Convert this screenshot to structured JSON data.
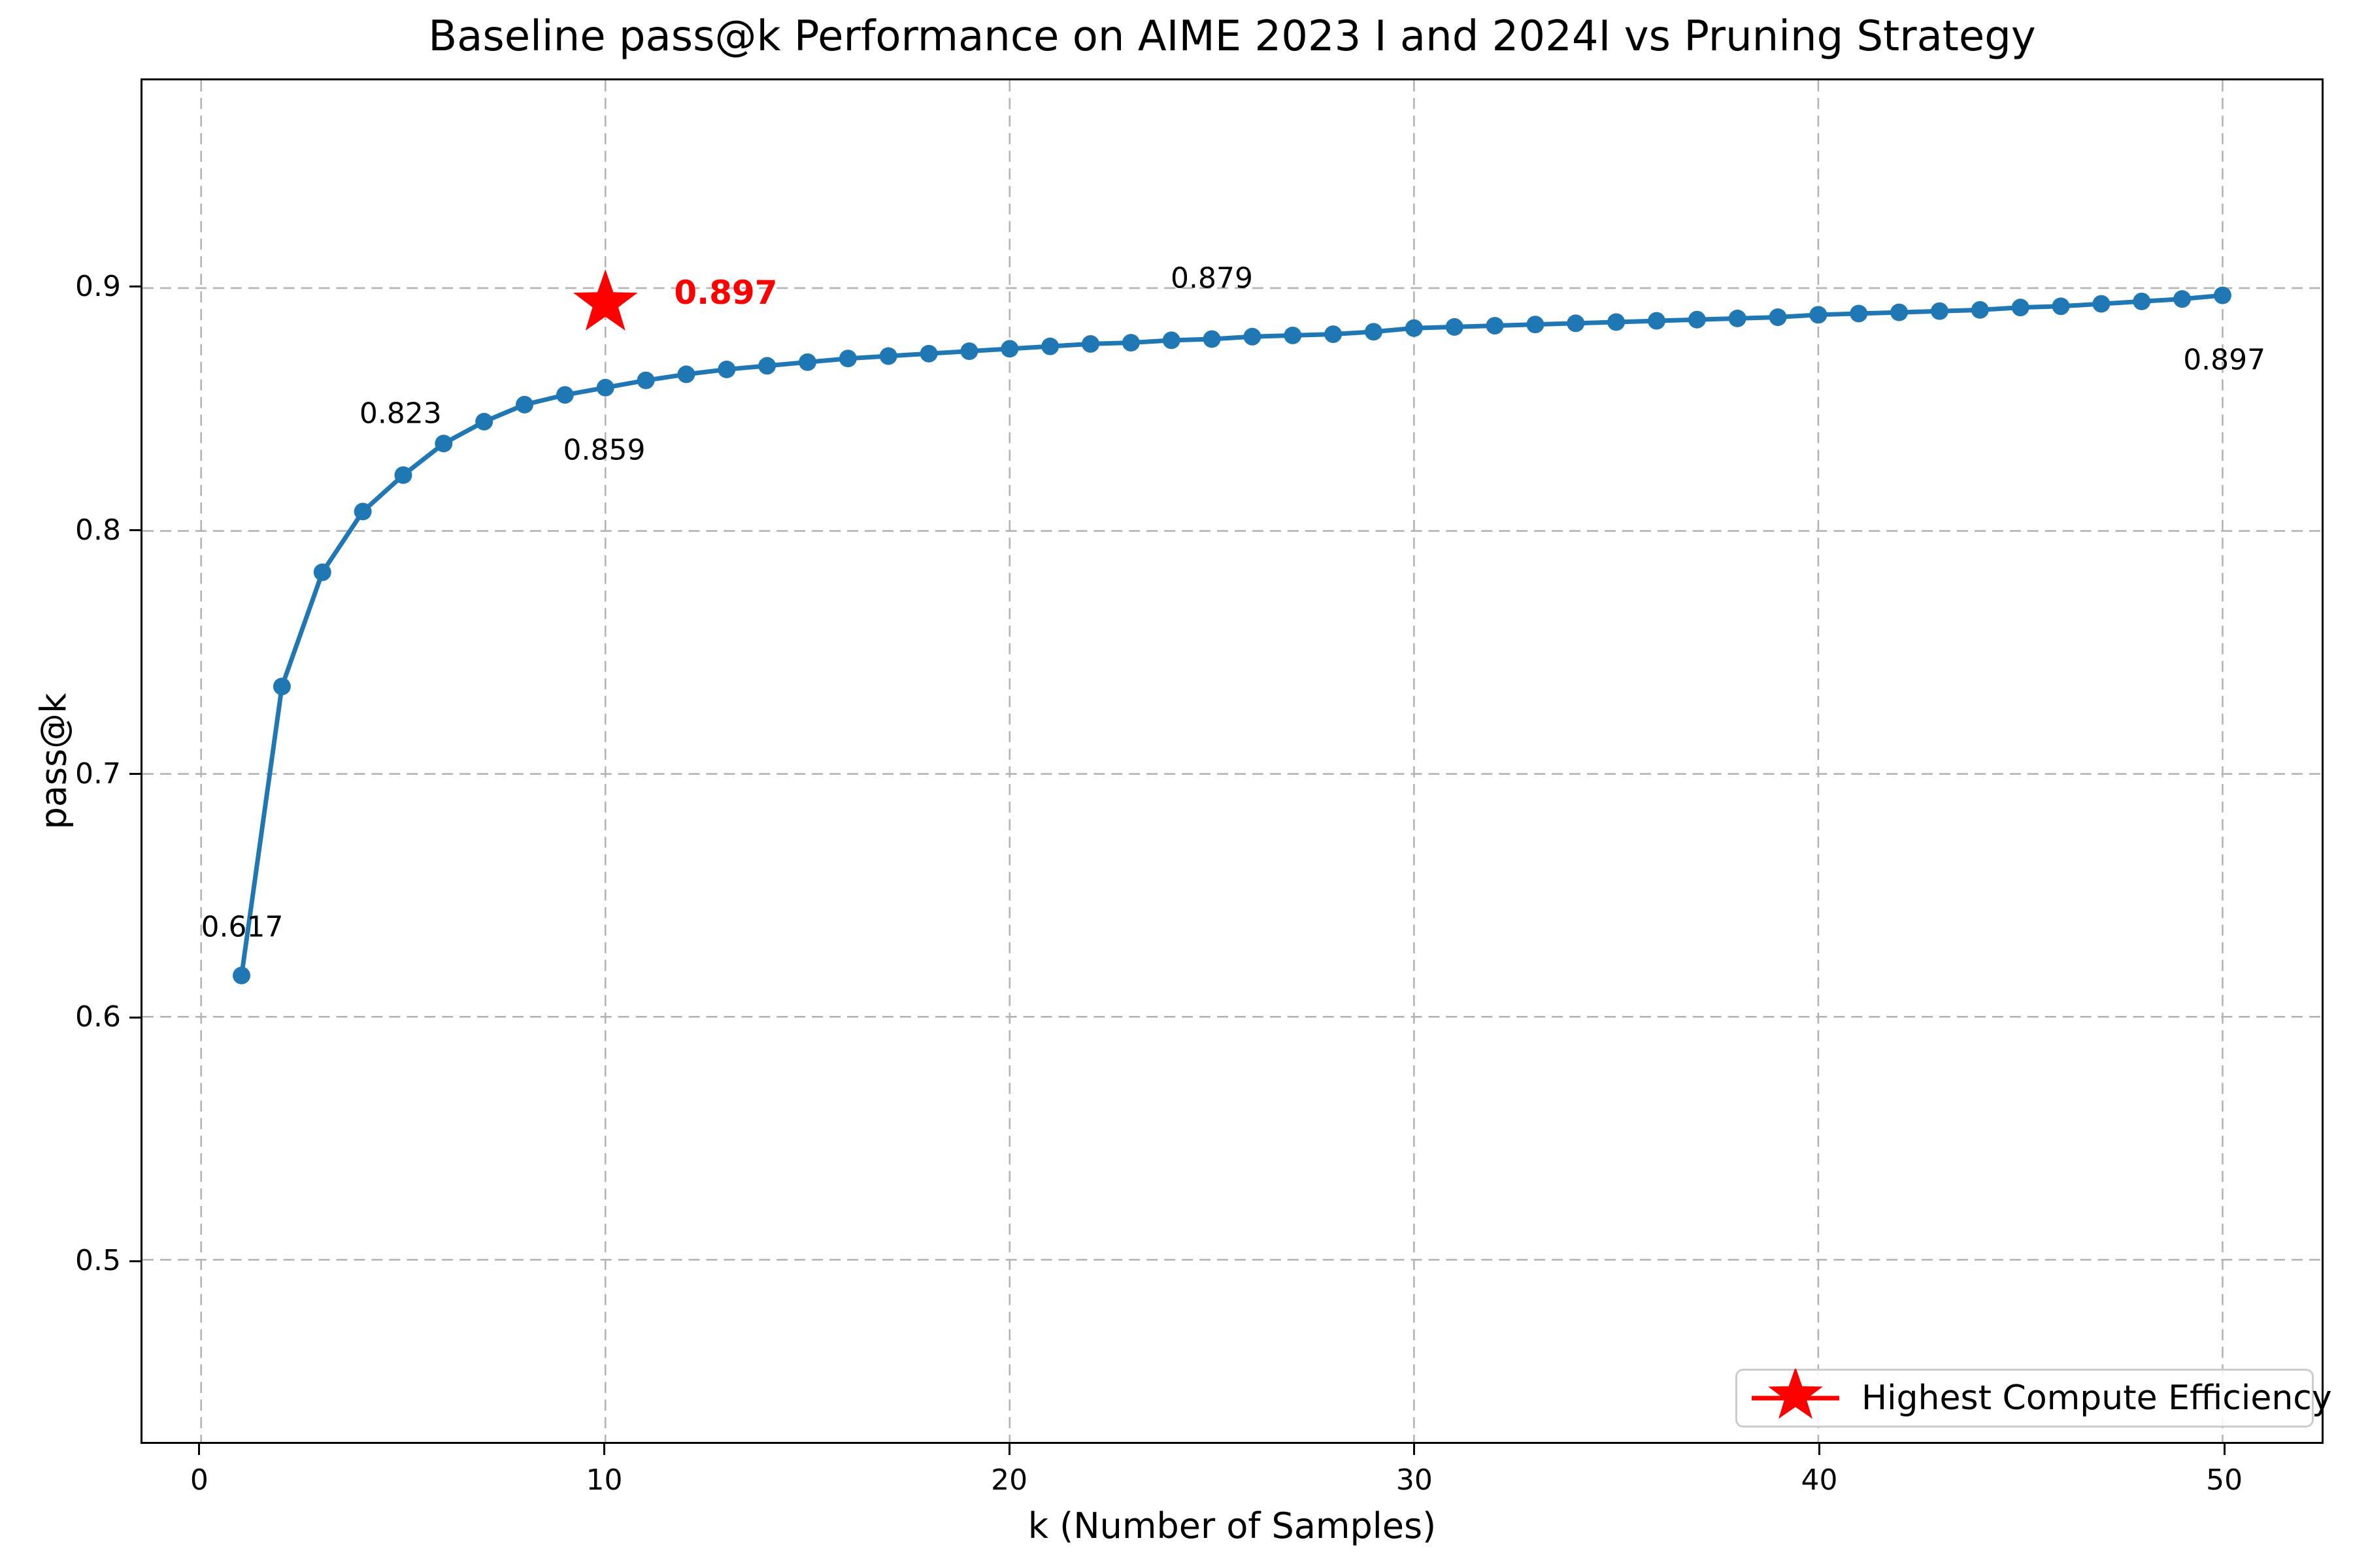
{
  "title": "Baseline pass@k Performance on AIME 2023 I and 2024I vs Pruning Strategy",
  "axes": {
    "xlabel": "k (Number of Samples)",
    "ylabel": "pass@k",
    "x_ticks": [
      0,
      10,
      20,
      30,
      40,
      50
    ],
    "y_ticks": [
      0.5,
      0.6,
      0.7,
      0.8,
      0.9
    ],
    "xlim": [
      -1.45,
      52.45
    ],
    "ylim": [
      0.425,
      0.9855
    ],
    "grid": "dashed"
  },
  "colors": {
    "line": "#1f77b4",
    "marker": "#1f77b4",
    "star": "#ff0000",
    "grid": "#b3b3b3",
    "text": "#000000",
    "legend_border": "#cccccc"
  },
  "chart_data": {
    "type": "line",
    "title": "Baseline pass@k Performance on AIME 2023 I and 2024I vs Pruning Strategy",
    "xlabel": "k (Number of Samples)",
    "ylabel": "pass@k",
    "xlim": [
      -1.45,
      52.45
    ],
    "ylim": [
      0.425,
      0.9855
    ],
    "grid": true,
    "legend_position": "lower right",
    "x": [
      1,
      2,
      3,
      4,
      5,
      6,
      7,
      8,
      9,
      10,
      11,
      12,
      13,
      14,
      15,
      16,
      17,
      18,
      19,
      20,
      21,
      22,
      23,
      24,
      25,
      26,
      27,
      28,
      29,
      30,
      31,
      32,
      33,
      34,
      35,
      36,
      37,
      38,
      39,
      40,
      41,
      42,
      43,
      44,
      45,
      46,
      47,
      48,
      49,
      50
    ],
    "series": [
      {
        "name": "Baseline pass@k",
        "color": "#1f77b4",
        "marker": "circle",
        "values": [
          0.617,
          0.736,
          0.783,
          0.808,
          0.823,
          0.836,
          0.845,
          0.852,
          0.856,
          0.859,
          0.862,
          0.8645,
          0.8665,
          0.868,
          0.8695,
          0.871,
          0.872,
          0.873,
          0.874,
          0.875,
          0.876,
          0.877,
          0.8775,
          0.8785,
          0.879,
          0.88,
          0.8805,
          0.881,
          0.882,
          0.8835,
          0.884,
          0.8845,
          0.885,
          0.8855,
          0.886,
          0.8865,
          0.887,
          0.8875,
          0.888,
          0.889,
          0.8895,
          0.89,
          0.8905,
          0.891,
          0.892,
          0.8925,
          0.8935,
          0.8945,
          0.8955,
          0.897
        ]
      }
    ],
    "highlight_point": {
      "x": 10,
      "y": 0.897,
      "marker": "star",
      "color": "#ff0000",
      "label": "0.897"
    },
    "annotations": [
      {
        "text": "0.617",
        "x": 1.06,
        "y": 0.637,
        "color": "#000000",
        "emphasis": false
      },
      {
        "text": "0.823",
        "x": 4.97,
        "y": 0.848,
        "color": "#000000",
        "emphasis": false
      },
      {
        "text": "0.859",
        "x": 10.0,
        "y": 0.833,
        "color": "#000000",
        "emphasis": false
      },
      {
        "text": "0.897",
        "x": 13.0,
        "y": 0.8975,
        "color": "#ff0000",
        "emphasis": true
      },
      {
        "text": "0.879",
        "x": 25.0,
        "y": 0.9035,
        "color": "#000000",
        "emphasis": false
      },
      {
        "text": "0.897",
        "x": 50.0,
        "y": 0.87,
        "color": "#000000",
        "emphasis": false
      }
    ]
  },
  "legend": {
    "label": "Highest Compute Efficiency",
    "marker": "star",
    "marker_color": "#ff0000"
  }
}
